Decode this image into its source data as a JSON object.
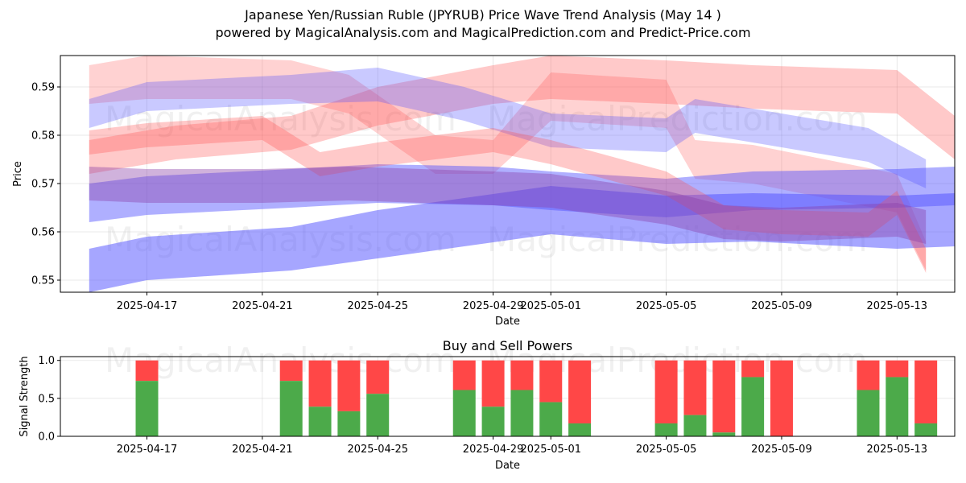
{
  "title": "Japanese Yen/Russian Ruble (JPYRUB) Price Wave Trend Analysis (May 14 )",
  "subtitle": "powered by MagicalAnalysis.com and MagicalPrediction.com and Predict-Price.com",
  "watermarks": [
    "MagicalAnalysis.com",
    "MagicalPrediction.com"
  ],
  "colors": {
    "buy": "#4caa4a",
    "sell": "#ff4747",
    "wave_red": "#ff4d4d",
    "wave_blue": "#4d4dff"
  },
  "chart_data": [
    {
      "type": "area",
      "name": "price-wave-chart",
      "xlabel": "Date",
      "ylabel": "Price",
      "x_ticks": [
        "2025-04-17",
        "2025-04-21",
        "2025-04-25",
        "2025-04-29",
        "2025-05-01",
        "2025-05-05",
        "2025-05-09",
        "2025-05-13"
      ],
      "y_ticks": [
        0.55,
        0.56,
        0.57,
        0.58,
        0.59
      ],
      "xlim": [
        "2025-04-14",
        "2025-05-15"
      ],
      "ylim": [
        0.5475,
        0.5965
      ],
      "grid": true,
      "series": [
        {
          "color": "red",
          "opacity": 0.3,
          "x": [
            "2025-04-15",
            "2025-04-18",
            "2025-04-22",
            "2025-04-25",
            "2025-04-29",
            "2025-05-01",
            "2025-05-05",
            "2025-05-08",
            "2025-05-13",
            "2025-05-15"
          ],
          "y": [
            0.5755,
            0.5785,
            0.5805,
            0.586,
            0.5905,
            0.592,
            0.591,
            0.59,
            0.589,
            0.5795
          ],
          "band": [
            0.0035,
            0.0035,
            0.0035,
            0.004,
            0.004,
            0.0045,
            0.0045,
            0.0045,
            0.0045,
            0.0045
          ]
        },
        {
          "color": "red",
          "opacity": 0.25,
          "x": [
            "2025-04-15",
            "2025-04-17",
            "2025-04-22",
            "2025-04-24",
            "2025-04-27",
            "2025-04-29",
            "2025-05-01",
            "2025-05-05",
            "2025-05-06",
            "2025-05-08",
            "2025-05-13",
            "2025-05-14"
          ],
          "y": [
            0.5905,
            0.592,
            0.5915,
            0.5885,
            0.576,
            0.5755,
            0.588,
            0.5865,
            0.575,
            0.574,
            0.568,
            0.555
          ],
          "band": [
            0.004,
            0.0045,
            0.004,
            0.004,
            0.004,
            0.0035,
            0.005,
            0.005,
            0.004,
            0.004,
            0.004,
            0.003
          ]
        },
        {
          "color": "blue",
          "opacity": 0.3,
          "x": [
            "2025-04-15",
            "2025-04-17",
            "2025-04-22",
            "2025-04-25",
            "2025-04-28",
            "2025-05-01",
            "2025-05-05",
            "2025-05-06",
            "2025-05-08",
            "2025-05-12",
            "2025-05-14"
          ],
          "y": [
            0.5845,
            0.588,
            0.5895,
            0.5905,
            0.5865,
            0.581,
            0.58,
            0.584,
            0.582,
            0.578,
            0.572
          ],
          "band": [
            0.003,
            0.003,
            0.003,
            0.0035,
            0.0035,
            0.0035,
            0.0035,
            0.0035,
            0.0035,
            0.0035,
            0.003
          ]
        },
        {
          "color": "blue",
          "opacity": 0.45,
          "x": [
            "2025-04-15",
            "2025-04-17",
            "2025-04-22",
            "2025-04-25",
            "2025-04-29",
            "2025-05-01",
            "2025-05-05",
            "2025-05-08",
            "2025-05-13",
            "2025-05-15"
          ],
          "y": [
            0.566,
            0.5675,
            0.569,
            0.57,
            0.5695,
            0.5685,
            0.567,
            0.5685,
            0.569,
            0.5695
          ],
          "band": [
            0.004,
            0.004,
            0.004,
            0.004,
            0.004,
            0.004,
            0.004,
            0.004,
            0.004,
            0.004
          ]
        },
        {
          "color": "blue",
          "opacity": 0.5,
          "x": [
            "2025-04-15",
            "2025-04-17",
            "2025-04-22",
            "2025-04-25",
            "2025-04-28",
            "2025-05-01",
            "2025-05-05",
            "2025-05-08",
            "2025-05-13",
            "2025-05-15"
          ],
          "y": [
            0.552,
            0.5545,
            0.5565,
            0.5595,
            0.562,
            0.5645,
            0.5625,
            0.563,
            0.562,
            0.5625
          ],
          "band": [
            0.0045,
            0.0045,
            0.0045,
            0.005,
            0.005,
            0.005,
            0.005,
            0.005,
            0.0055,
            0.0055
          ]
        },
        {
          "color": "red",
          "opacity": 0.3,
          "x": [
            "2025-04-15",
            "2025-04-17",
            "2025-04-21",
            "2025-04-23",
            "2025-04-25",
            "2025-04-29",
            "2025-05-01",
            "2025-05-05",
            "2025-05-07",
            "2025-05-09",
            "2025-05-12",
            "2025-05-13",
            "2025-05-14"
          ],
          "y": [
            0.5785,
            0.58,
            0.5815,
            0.574,
            0.576,
            0.579,
            0.5765,
            0.57,
            0.563,
            0.562,
            0.5615,
            0.566,
            0.554
          ],
          "band": [
            0.0025,
            0.0025,
            0.0025,
            0.0025,
            0.0025,
            0.0025,
            0.0025,
            0.0025,
            0.0025,
            0.0025,
            0.0025,
            0.0025,
            0.0025
          ]
        },
        {
          "color": "purple",
          "opacity": 0.4,
          "x": [
            "2025-04-15",
            "2025-04-17",
            "2025-04-21",
            "2025-04-24",
            "2025-04-29",
            "2025-05-01",
            "2025-05-05",
            "2025-05-07",
            "2025-05-09",
            "2025-05-13",
            "2025-05-14"
          ],
          "y": [
            0.57,
            0.5695,
            0.5695,
            0.57,
            0.569,
            0.5685,
            0.565,
            0.562,
            0.5615,
            0.5625,
            0.561
          ],
          "band": [
            0.0035,
            0.0035,
            0.0035,
            0.0035,
            0.0035,
            0.0035,
            0.0035,
            0.0035,
            0.0035,
            0.0035,
            0.0035
          ]
        }
      ]
    },
    {
      "type": "bar",
      "name": "buy-sell-power-chart",
      "title": "Buy and Sell Powers",
      "xlabel": "Date",
      "ylabel": "Signal Strength",
      "ylim": [
        0,
        1.05
      ],
      "y_ticks": [
        0.0,
        0.5,
        1.0
      ],
      "x_ticks": [
        "2025-04-17",
        "2025-04-21",
        "2025-04-25",
        "2025-04-29",
        "2025-05-01",
        "2025-05-05",
        "2025-05-09",
        "2025-05-13"
      ],
      "categories": [
        "2025-04-17",
        "2025-04-22",
        "2025-04-23",
        "2025-04-24",
        "2025-04-25",
        "2025-04-28",
        "2025-04-29",
        "2025-04-30",
        "2025-05-01",
        "2025-05-02",
        "2025-05-05",
        "2025-05-06",
        "2025-05-07",
        "2025-05-08",
        "2025-05-09",
        "2025-05-12",
        "2025-05-13",
        "2025-05-14"
      ],
      "series": [
        {
          "name": "Buy",
          "values": [
            0.73,
            0.73,
            0.39,
            0.33,
            0.56,
            0.61,
            0.39,
            0.61,
            0.45,
            0.17,
            0.17,
            0.28,
            0.05,
            0.78,
            0.0,
            0.61,
            0.78,
            0.17
          ]
        },
        {
          "name": "Sell",
          "values": [
            0.27,
            0.27,
            0.61,
            0.67,
            0.44,
            0.39,
            0.61,
            0.39,
            0.55,
            0.83,
            0.83,
            0.72,
            0.95,
            0.22,
            1.0,
            0.39,
            0.22,
            0.83
          ]
        }
      ]
    }
  ]
}
